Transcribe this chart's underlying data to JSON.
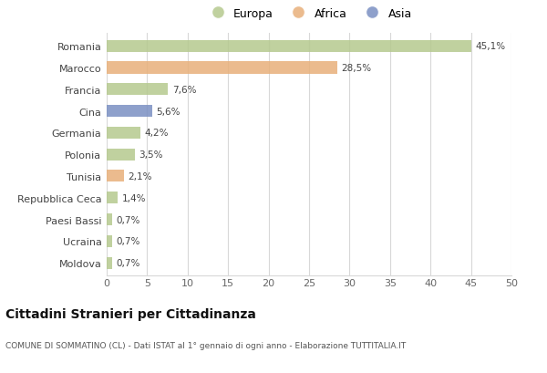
{
  "categories": [
    "Romania",
    "Marocco",
    "Francia",
    "Cina",
    "Germania",
    "Polonia",
    "Tunisia",
    "Repubblica Ceca",
    "Paesi Bassi",
    "Ucraina",
    "Moldova"
  ],
  "values": [
    45.1,
    28.5,
    7.6,
    5.6,
    4.2,
    3.5,
    2.1,
    1.4,
    0.7,
    0.7,
    0.7
  ],
  "labels": [
    "45,1%",
    "28,5%",
    "7,6%",
    "5,6%",
    "4,2%",
    "3,5%",
    "2,1%",
    "1,4%",
    "0,7%",
    "0,7%",
    "0,7%"
  ],
  "colors": [
    "#b5c98e",
    "#e8b07a",
    "#b5c98e",
    "#7a8fc2",
    "#b5c98e",
    "#b5c98e",
    "#e8b07a",
    "#b5c98e",
    "#b5c98e",
    "#b5c98e",
    "#b5c98e"
  ],
  "legend_labels": [
    "Europa",
    "Africa",
    "Asia"
  ],
  "legend_colors": [
    "#b5c98e",
    "#e8b07a",
    "#7a8fc2"
  ],
  "title": "Cittadini Stranieri per Cittadinanza",
  "subtitle": "COMUNE DI SOMMATINO (CL) - Dati ISTAT al 1° gennaio di ogni anno - Elaborazione TUTTITALIA.IT",
  "xlim": [
    0,
    50
  ],
  "xticks": [
    0,
    5,
    10,
    15,
    20,
    25,
    30,
    35,
    40,
    45,
    50
  ],
  "background_color": "#ffffff",
  "grid_color": "#d8d8d8"
}
